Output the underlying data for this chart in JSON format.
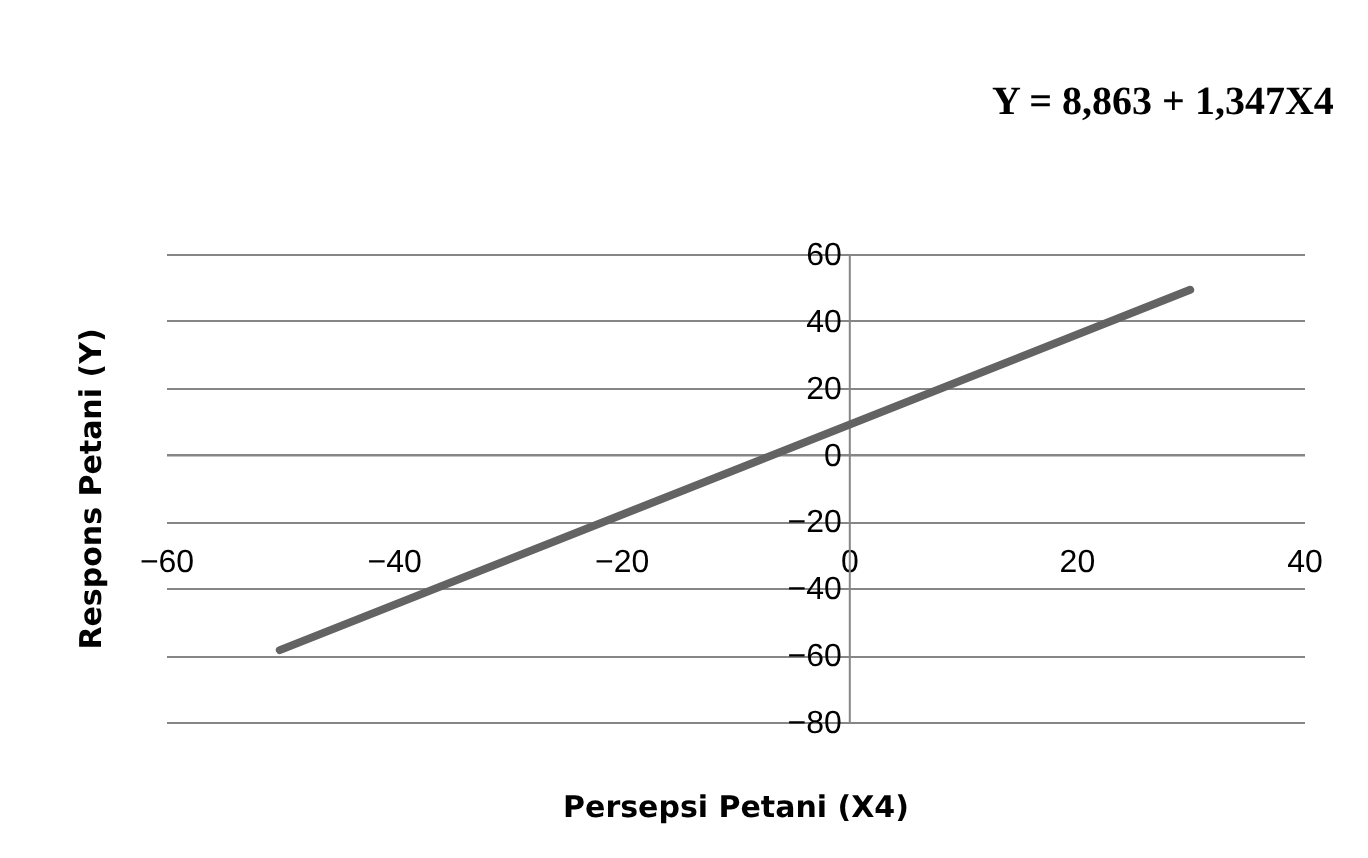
{
  "chart_data": {
    "type": "line",
    "title": "Y = 8,863 + 1,347X4",
    "xlabel": "Persepsi Petani (X4)",
    "ylabel": "Respons Petani (Y)",
    "x": [
      -50,
      30
    ],
    "series": [
      {
        "color": "#636363",
        "values": [
          -58.5,
          49.3
        ]
      }
    ],
    "xlim": [
      -60,
      40
    ],
    "xticks": [
      -60,
      -40,
      -20,
      0,
      20,
      40
    ],
    "ylim": [
      -80,
      60
    ],
    "yticks": [
      -80,
      -60,
      -40,
      -20,
      0,
      20,
      40,
      60
    ],
    "grid": "y",
    "marker": "none",
    "line_style": "solid"
  }
}
